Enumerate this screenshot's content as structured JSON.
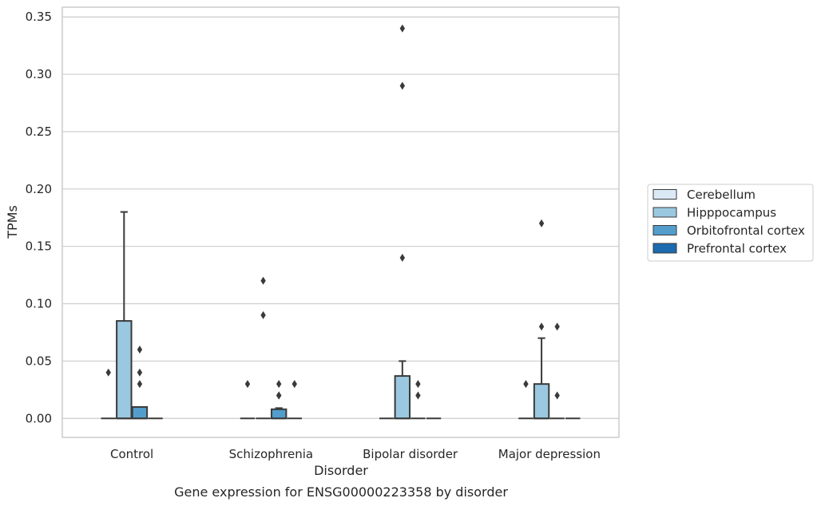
{
  "chart_data": {
    "type": "box",
    "title": "Gene expression for ENSG00000223358 by disorder",
    "xlabel": "Disorder",
    "ylabel": "TPMs",
    "ylim": [
      -0.0165,
      0.3585
    ],
    "yticks": [
      "0.00",
      "0.05",
      "0.10",
      "0.15",
      "0.20",
      "0.25",
      "0.30",
      "0.35"
    ],
    "grid": true,
    "legend_position": "right",
    "categories": [
      "Control",
      "Schizophrenia",
      "Bipolar disorder",
      "Major depression"
    ],
    "series": [
      {
        "name": "Cerebellum",
        "color": "#dbe9f6",
        "boxes": [
          {
            "q1": 0,
            "median": 0,
            "q3": 0,
            "whisker_low": 0,
            "whisker_high": 0,
            "outliers": []
          },
          {
            "q1": 0,
            "median": 0,
            "q3": 0,
            "whisker_low": 0,
            "whisker_high": 0,
            "outliers": [
              0.03
            ]
          },
          {
            "q1": 0,
            "median": 0,
            "q3": 0,
            "whisker_low": 0,
            "whisker_high": 0,
            "outliers": []
          },
          {
            "q1": 0,
            "median": 0,
            "q3": 0,
            "whisker_low": 0,
            "whisker_high": 0,
            "outliers": []
          }
        ]
      },
      {
        "name": "Hipppocampus",
        "color": "#9ac8e0",
        "boxes": [
          {
            "q1": 0,
            "median": 0,
            "q3": 0.085,
            "whisker_low": 0,
            "whisker_high": 0.18,
            "outliers": []
          },
          {
            "q1": 0,
            "median": 0,
            "q3": 0,
            "whisker_low": 0,
            "whisker_high": 0,
            "outliers": [
              0.12,
              0.09
            ]
          },
          {
            "q1": 0,
            "median": 0,
            "q3": 0.037,
            "whisker_low": 0,
            "whisker_high": 0.05,
            "outliers": [
              0.34,
              0.29,
              0.14
            ]
          },
          {
            "q1": 0,
            "median": 0,
            "q3": 0.03,
            "whisker_low": 0,
            "whisker_high": 0.07,
            "outliers": [
              0.17,
              0.08
            ]
          }
        ]
      },
      {
        "name": "Orbitofrontal cortex",
        "color": "#529dcc",
        "boxes": [
          {
            "q1": 0,
            "median": 0,
            "q3": 0.01,
            "whisker_low": 0,
            "whisker_high": 0.01,
            "outliers": [
              0.06,
              0.04,
              0.03
            ]
          },
          {
            "q1": 0,
            "median": 0,
            "q3": 0.008,
            "whisker_low": 0,
            "whisker_high": 0.009,
            "outliers": [
              0.03,
              0.02,
              0.02
            ]
          },
          {
            "q1": 0,
            "median": 0,
            "q3": 0,
            "whisker_low": 0,
            "whisker_high": 0,
            "outliers": [
              0.03,
              0.02
            ]
          },
          {
            "q1": 0,
            "median": 0,
            "q3": 0,
            "whisker_low": 0,
            "whisker_high": 0,
            "outliers": [
              0.08,
              0.02
            ]
          }
        ]
      },
      {
        "name": "Prefrontal cortex",
        "color": "#1c6aaf",
        "boxes": [
          {
            "q1": 0,
            "median": 0,
            "q3": 0,
            "whisker_low": 0,
            "whisker_high": 0,
            "outliers": []
          },
          {
            "q1": 0,
            "median": 0,
            "q3": 0,
            "whisker_low": 0,
            "whisker_high": 0,
            "outliers": [
              0.03
            ]
          },
          {
            "q1": 0,
            "median": 0,
            "q3": 0,
            "whisker_low": 0,
            "whisker_high": 0,
            "outliers": []
          },
          {
            "q1": 0,
            "median": 0,
            "q3": 0,
            "whisker_low": 0,
            "whisker_high": 0,
            "outliers": []
          }
        ]
      }
    ],
    "extra_outliers": [
      {
        "category": 0,
        "series": 0,
        "value": 0.04
      },
      {
        "category": 3,
        "series": 0,
        "value": 0.03
      }
    ]
  }
}
